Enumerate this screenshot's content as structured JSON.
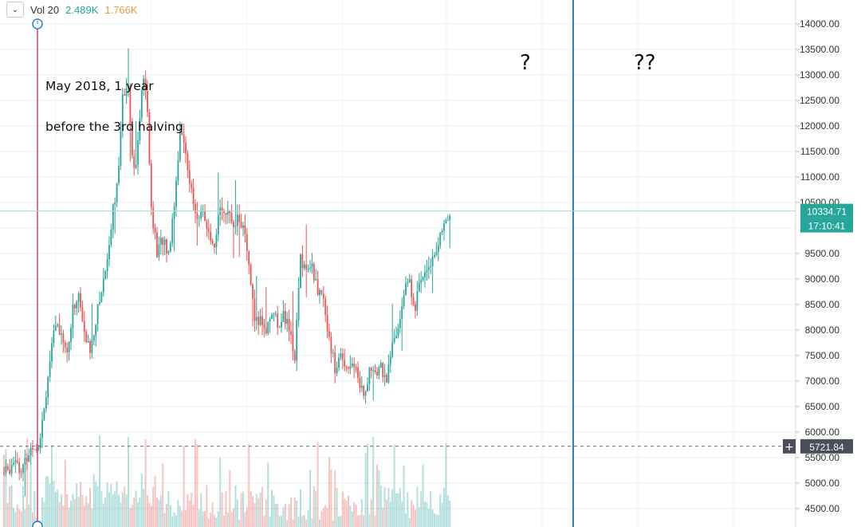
{
  "header": {
    "dropdown_icon": "chevron-down-icon",
    "vol_label": "Vol 20",
    "vol_value_1": "2.489K",
    "vol_value_2": "1.766K",
    "vol_color_1": "#26a69a",
    "vol_color_2": "#ef9a3c"
  },
  "annotations": {
    "line1": "May 2018, 1 year",
    "line2": "before the 3rd halving",
    "q1": "?",
    "q2": "??"
  },
  "colors": {
    "up": "#26a69a",
    "down": "#ef5350",
    "marker_line": "#d1427a",
    "future_line": "#2a7fd4",
    "price_line": "#a8dadc",
    "grid": "#eef0f3"
  },
  "price_axis": {
    "ticks": [
      "14000.00",
      "13500.00",
      "13000.00",
      "12500.00",
      "12000.00",
      "11500.00",
      "11000.00",
      "10500.00",
      "9500.00",
      "9000.00",
      "8500.00",
      "8000.00",
      "7500.00",
      "7000.00",
      "6500.00",
      "6000.00",
      "5500.00",
      "5000.00",
      "4500.00"
    ],
    "last_price": "10334.71",
    "countdown": "17:10:41",
    "crosshair_price": "5721.84",
    "crosshair_icon": "plus-icon"
  },
  "chart_data": {
    "type": "candlestick",
    "title": "",
    "ylim": [
      4300,
      14500
    ],
    "grid": true,
    "series": [
      {
        "x": 0,
        "y": 5200
      },
      {
        "x": 3,
        "y": 5300
      },
      {
        "x": 6,
        "y": 5550
      },
      {
        "x": 9,
        "y": 5200
      },
      {
        "x": 12,
        "y": 5500
      },
      {
        "x": 15,
        "y": 5750
      },
      {
        "x": 18,
        "y": 5750
      },
      {
        "x": 21,
        "y": 6500
      },
      {
        "x": 24,
        "y": 7400
      },
      {
        "x": 27,
        "y": 8100
      },
      {
        "x": 30,
        "y": 8000
      },
      {
        "x": 33,
        "y": 7500
      },
      {
        "x": 36,
        "y": 8400
      },
      {
        "x": 39,
        "y": 8700
      },
      {
        "x": 42,
        "y": 7900
      },
      {
        "x": 45,
        "y": 7600
      },
      {
        "x": 48,
        "y": 8200
      },
      {
        "x": 51,
        "y": 8800
      },
      {
        "x": 54,
        "y": 9400
      },
      {
        "x": 57,
        "y": 10400
      },
      {
        "x": 60,
        "y": 11100
      },
      {
        "x": 62,
        "y": 12600
      },
      {
        "x": 65,
        "y": 12900
      },
      {
        "x": 67,
        "y": 11400
      },
      {
        "x": 69,
        "y": 11200
      },
      {
        "x": 71,
        "y": 12200
      },
      {
        "x": 73,
        "y": 13000
      },
      {
        "x": 75,
        "y": 12200
      },
      {
        "x": 77,
        "y": 10400
      },
      {
        "x": 80,
        "y": 9500
      },
      {
        "x": 83,
        "y": 9800
      },
      {
        "x": 86,
        "y": 9500
      },
      {
        "x": 89,
        "y": 10500
      },
      {
        "x": 92,
        "y": 11900
      },
      {
        "x": 95,
        "y": 11500
      },
      {
        "x": 98,
        "y": 10700
      },
      {
        "x": 101,
        "y": 10100
      },
      {
        "x": 104,
        "y": 10400
      },
      {
        "x": 107,
        "y": 9800
      },
      {
        "x": 110,
        "y": 9500
      },
      {
        "x": 113,
        "y": 10500
      },
      {
        "x": 116,
        "y": 10300
      },
      {
        "x": 119,
        "y": 10100
      },
      {
        "x": 122,
        "y": 10200
      },
      {
        "x": 125,
        "y": 10000
      },
      {
        "x": 128,
        "y": 9300
      },
      {
        "x": 131,
        "y": 8100
      },
      {
        "x": 134,
        "y": 8200
      },
      {
        "x": 137,
        "y": 8000
      },
      {
        "x": 140,
        "y": 8400
      },
      {
        "x": 143,
        "y": 8100
      },
      {
        "x": 146,
        "y": 8300
      },
      {
        "x": 149,
        "y": 8000
      },
      {
        "x": 152,
        "y": 7500
      },
      {
        "x": 155,
        "y": 9400
      },
      {
        "x": 158,
        "y": 9200
      },
      {
        "x": 161,
        "y": 9200
      },
      {
        "x": 164,
        "y": 8800
      },
      {
        "x": 167,
        "y": 8500
      },
      {
        "x": 170,
        "y": 7900
      },
      {
        "x": 173,
        "y": 7200
      },
      {
        "x": 176,
        "y": 7500
      },
      {
        "x": 179,
        "y": 7300
      },
      {
        "x": 182,
        "y": 7400
      },
      {
        "x": 185,
        "y": 7100
      },
      {
        "x": 188,
        "y": 6700
      },
      {
        "x": 191,
        "y": 7200
      },
      {
        "x": 194,
        "y": 7100
      },
      {
        "x": 197,
        "y": 7300
      },
      {
        "x": 200,
        "y": 7000
      },
      {
        "x": 203,
        "y": 7700
      },
      {
        "x": 206,
        "y": 8000
      },
      {
        "x": 209,
        "y": 8800
      },
      {
        "x": 212,
        "y": 8900
      },
      {
        "x": 215,
        "y": 8500
      },
      {
        "x": 218,
        "y": 9000
      },
      {
        "x": 221,
        "y": 9300
      },
      {
        "x": 224,
        "y": 9400
      },
      {
        "x": 227,
        "y": 9700
      },
      {
        "x": 230,
        "y": 10000
      },
      {
        "x": 233,
        "y": 10300
      }
    ]
  }
}
